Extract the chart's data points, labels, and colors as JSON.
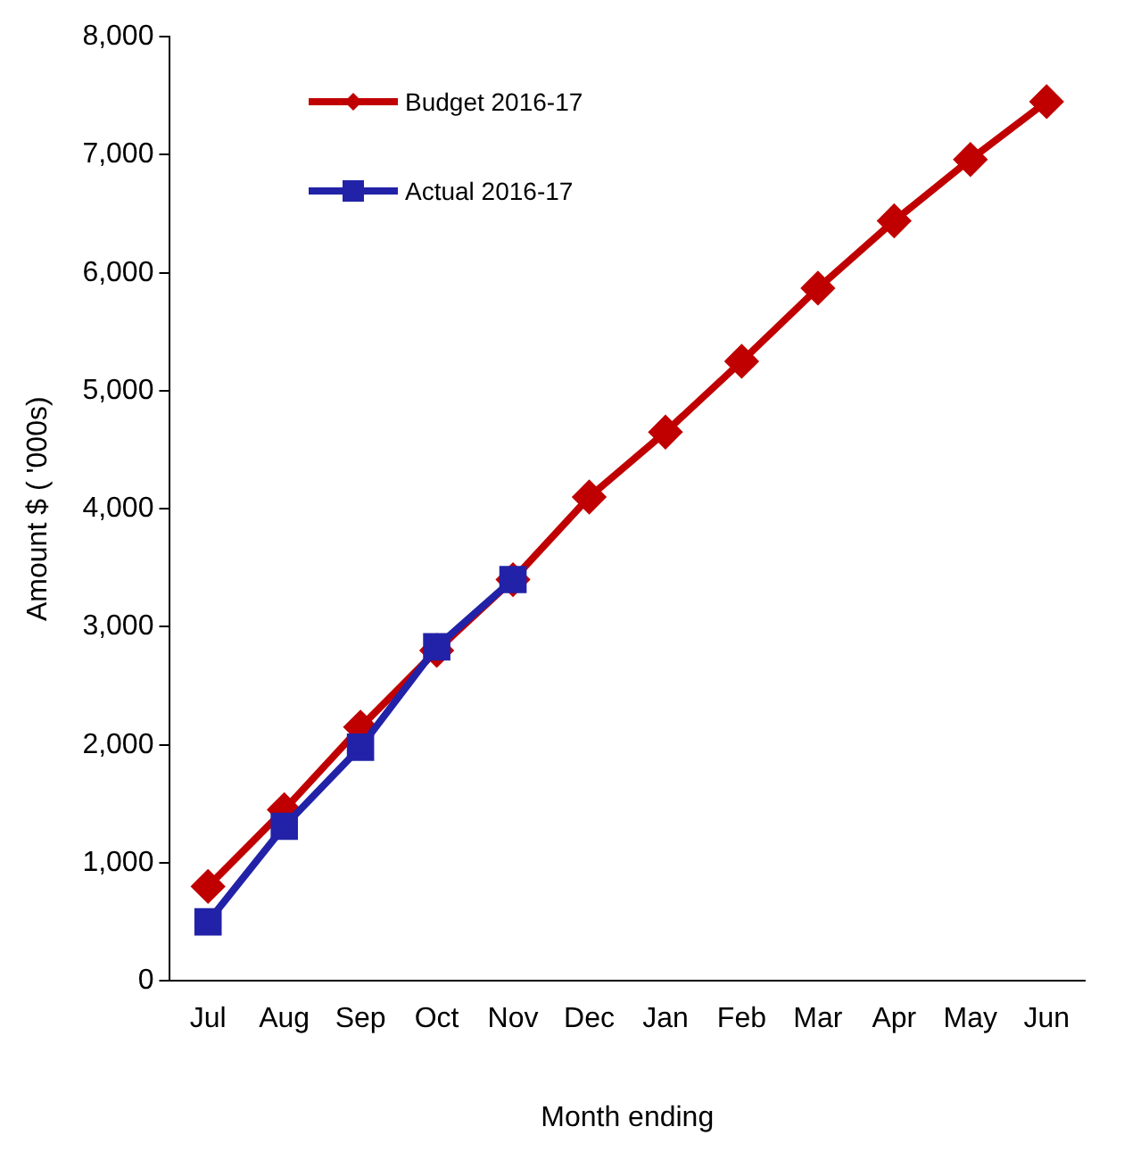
{
  "chart_data": {
    "type": "line",
    "xlabel": "Month ending",
    "ylabel": "Amount $ ( '000s)",
    "categories": [
      "Jul",
      "Aug",
      "Sep",
      "Oct",
      "Nov",
      "Dec",
      "Jan",
      "Feb",
      "Mar",
      "Apr",
      "May",
      "Jun"
    ],
    "series": [
      {
        "name": "Budget 2016-17",
        "color": "#c00000",
        "marker": "diamond",
        "values": [
          800,
          1450,
          2150,
          2800,
          3400,
          4100,
          4650,
          5250,
          5870,
          6440,
          6960,
          7450
        ]
      },
      {
        "name": "Actual 2016-17",
        "color": "#2222a8",
        "marker": "square",
        "values": [
          500,
          1310,
          1980,
          2830,
          3400,
          null,
          null,
          null,
          null,
          null,
          null,
          null
        ]
      }
    ],
    "ylim": [
      0,
      8000
    ],
    "yticks": [
      0,
      {
        "value": 1000,
        "label": "1,000"
      },
      {
        "value": 2000,
        "label": "2,000"
      },
      {
        "value": 3000,
        "label": "3,000"
      },
      {
        "value": 4000,
        "label": "4,000"
      },
      {
        "value": 5000,
        "label": "5,000"
      },
      {
        "value": 6000,
        "label": "6,000"
      },
      {
        "value": 7000,
        "label": "7,000"
      },
      {
        "value": 8000,
        "label": "8,000"
      }
    ],
    "grid": false,
    "legend": "top left"
  }
}
